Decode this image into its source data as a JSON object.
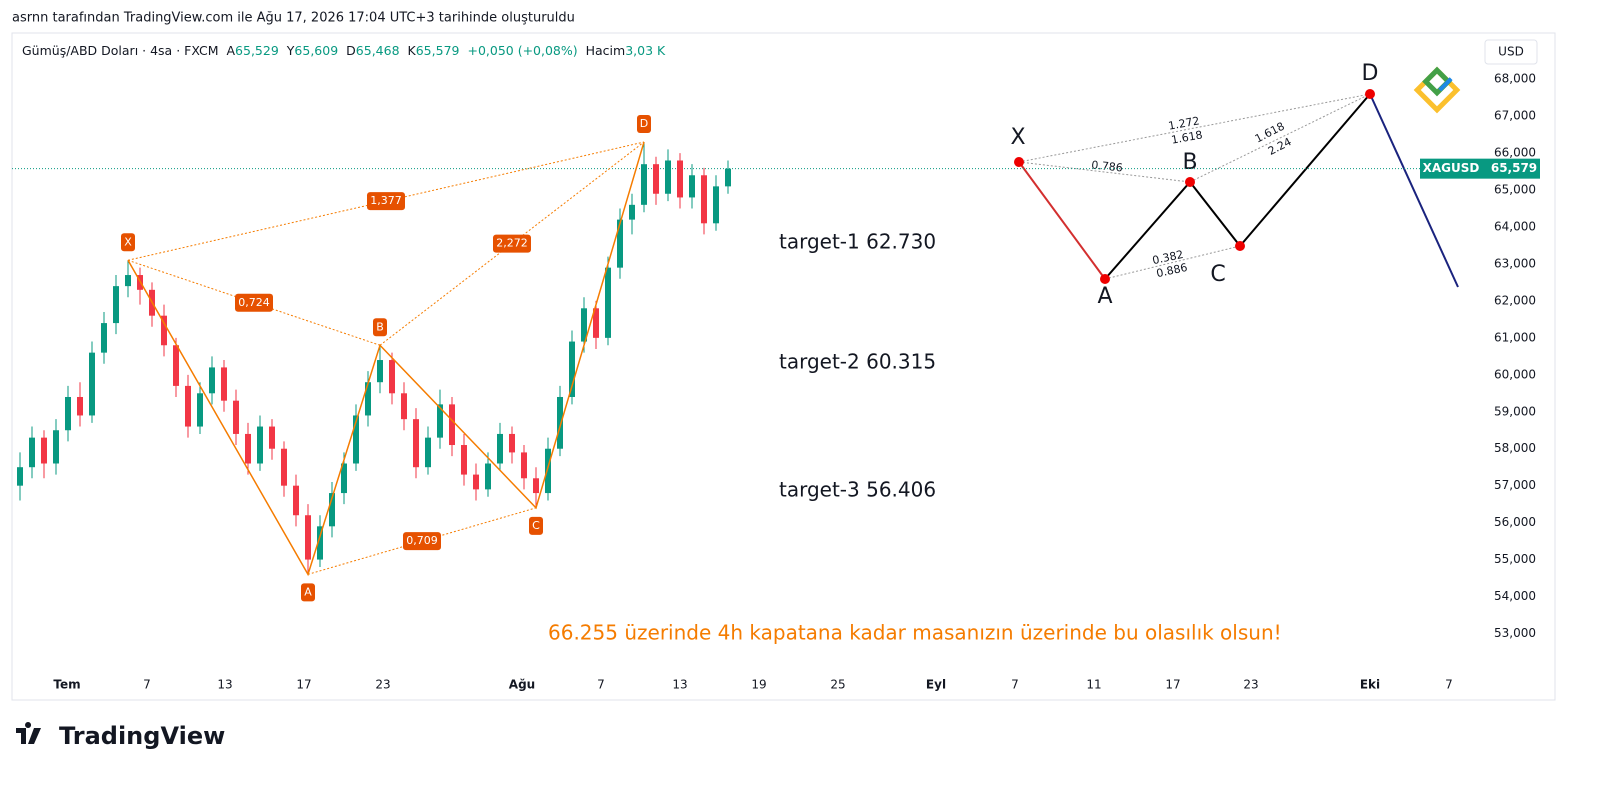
{
  "header": "asrnn tarafından TradingView.com ile Ağu 17, 2026 17:04 UTC+3 tarihinde oluşturuldu",
  "chart_data": {
    "type": "candlestick",
    "symbol": "Gümüş/ABD Doları · 4sa · FXCM",
    "ohlc_legend": [
      {
        "key": "A",
        "value": "65,529"
      },
      {
        "key": "Y",
        "value": "65,609"
      },
      {
        "key": "D",
        "value": "65,468"
      },
      {
        "key": "K",
        "value": "65,579"
      }
    ],
    "change": "+0,050 (+0,08%)",
    "volume_key": "Hacim",
    "volume": "3,03 K",
    "currency": "USD",
    "up_color": "#089981",
    "down_color": "#f23645",
    "ylim": [
      51.2,
      69.25
    ],
    "yticks": [
      {
        "value": 53,
        "label": "53,000"
      },
      {
        "value": 54,
        "label": "54,000"
      },
      {
        "value": 55,
        "label": "55,000"
      },
      {
        "value": 56,
        "label": "56,000"
      },
      {
        "value": 57,
        "label": "57,000"
      },
      {
        "value": 58,
        "label": "58,000"
      },
      {
        "value": 59,
        "label": "59,000"
      },
      {
        "value": 60,
        "label": "60,000"
      },
      {
        "value": 61,
        "label": "61,000"
      },
      {
        "value": 62,
        "label": "62,000"
      },
      {
        "value": 63,
        "label": "63,000"
      },
      {
        "value": 64,
        "label": "64,000"
      },
      {
        "value": 65,
        "label": "65,000"
      },
      {
        "value": 66,
        "label": "66,000"
      },
      {
        "value": 67,
        "label": "67,000"
      },
      {
        "value": 68,
        "label": "68,000"
      }
    ],
    "xticks": [
      "Tem",
      "7",
      "13",
      "17",
      "23",
      "Ağu",
      "7",
      "13",
      "19",
      "25",
      "Eyl",
      "7",
      "11",
      "17",
      "23",
      "Eki",
      "7"
    ],
    "candles": [
      [
        57.0,
        57.9,
        56.6,
        57.5
      ],
      [
        57.5,
        58.6,
        57.2,
        58.3
      ],
      [
        58.3,
        58.5,
        57.2,
        57.6
      ],
      [
        57.6,
        58.8,
        57.3,
        58.5
      ],
      [
        58.5,
        59.7,
        58.2,
        59.4
      ],
      [
        59.4,
        59.8,
        58.6,
        58.9
      ],
      [
        58.9,
        60.9,
        58.7,
        60.6
      ],
      [
        60.6,
        61.7,
        60.3,
        61.4
      ],
      [
        61.4,
        62.7,
        61.1,
        62.4
      ],
      [
        62.4,
        63.1,
        62.1,
        62.7
      ],
      [
        62.7,
        62.9,
        61.9,
        62.3
      ],
      [
        62.3,
        62.5,
        61.3,
        61.6
      ],
      [
        61.6,
        61.9,
        60.5,
        60.8
      ],
      [
        60.8,
        61.0,
        59.4,
        59.7
      ],
      [
        59.7,
        60.0,
        58.3,
        58.6
      ],
      [
        58.6,
        59.8,
        58.4,
        59.5
      ],
      [
        59.5,
        60.5,
        59.2,
        60.2
      ],
      [
        60.2,
        60.4,
        59.0,
        59.3
      ],
      [
        59.3,
        59.6,
        58.1,
        58.4
      ],
      [
        58.4,
        58.7,
        57.3,
        57.6
      ],
      [
        57.6,
        58.9,
        57.4,
        58.6
      ],
      [
        58.6,
        58.8,
        57.7,
        58.0
      ],
      [
        58.0,
        58.2,
        56.7,
        57.0
      ],
      [
        57.0,
        57.3,
        55.9,
        56.2
      ],
      [
        56.2,
        56.5,
        54.6,
        55.0
      ],
      [
        55.0,
        56.2,
        54.8,
        55.9
      ],
      [
        55.9,
        57.1,
        55.6,
        56.8
      ],
      [
        56.8,
        57.9,
        56.5,
        57.6
      ],
      [
        57.6,
        59.2,
        57.4,
        58.9
      ],
      [
        58.9,
        60.1,
        58.6,
        59.8
      ],
      [
        59.8,
        60.8,
        59.5,
        60.4
      ],
      [
        60.4,
        60.6,
        59.2,
        59.5
      ],
      [
        59.5,
        59.8,
        58.5,
        58.8
      ],
      [
        58.8,
        59.1,
        57.2,
        57.5
      ],
      [
        57.5,
        58.6,
        57.3,
        58.3
      ],
      [
        58.3,
        59.6,
        58.0,
        59.2
      ],
      [
        59.2,
        59.4,
        57.8,
        58.1
      ],
      [
        58.1,
        58.4,
        57.0,
        57.3
      ],
      [
        57.3,
        57.6,
        56.6,
        56.9
      ],
      [
        56.9,
        57.9,
        56.7,
        57.6
      ],
      [
        57.6,
        58.7,
        57.4,
        58.4
      ],
      [
        58.4,
        58.6,
        57.6,
        57.9
      ],
      [
        57.9,
        58.1,
        56.9,
        57.2
      ],
      [
        57.2,
        57.5,
        56.4,
        56.8
      ],
      [
        56.8,
        58.3,
        56.6,
        58.0
      ],
      [
        58.0,
        59.7,
        57.8,
        59.4
      ],
      [
        59.4,
        61.2,
        59.2,
        60.9
      ],
      [
        60.9,
        62.1,
        60.6,
        61.8
      ],
      [
        61.8,
        62.0,
        60.7,
        61.0
      ],
      [
        61.0,
        63.2,
        60.8,
        62.9
      ],
      [
        62.9,
        64.5,
        62.6,
        64.2
      ],
      [
        64.2,
        64.9,
        63.8,
        64.6
      ],
      [
        64.6,
        66.3,
        64.4,
        65.7
      ],
      [
        65.7,
        65.9,
        64.6,
        64.9
      ],
      [
        64.9,
        66.1,
        64.7,
        65.8
      ],
      [
        65.8,
        66.0,
        64.5,
        64.8
      ],
      [
        64.8,
        65.7,
        64.5,
        65.4
      ],
      [
        65.4,
        65.6,
        63.8,
        64.1
      ],
      [
        64.1,
        65.4,
        63.9,
        65.1
      ],
      [
        65.1,
        65.8,
        64.9,
        65.579
      ]
    ],
    "last_price": {
      "value": 65.579,
      "label": "65,579",
      "symbol": "XAGUSD"
    },
    "pattern": {
      "color": "#f57c00",
      "points": [
        {
          "label": "X",
          "index": 9,
          "price": 63.1
        },
        {
          "label": "A",
          "index": 24,
          "price": 54.6
        },
        {
          "label": "B",
          "index": 30,
          "price": 60.8
        },
        {
          "label": "C",
          "index": 43,
          "price": 56.4
        },
        {
          "label": "D",
          "index": 52,
          "price": 66.3
        }
      ],
      "ratios": [
        "1,377",
        "0,724",
        "2,272",
        "0,709"
      ]
    },
    "annotations": [
      "target-1 62.730",
      "target-2 60.315",
      "target-3 56.406"
    ],
    "note": "66.255 üzerinde 4h kapatana kadar masanızın üzerinde bu olasılık olsun!"
  },
  "schematic": {
    "points": [
      "X",
      "A",
      "B",
      "C",
      "D"
    ],
    "ratios": [
      "1.272",
      "1.618",
      "0.786",
      "1.618",
      "2.24",
      "0.382",
      "0.886"
    ]
  },
  "brand": "TradingView"
}
